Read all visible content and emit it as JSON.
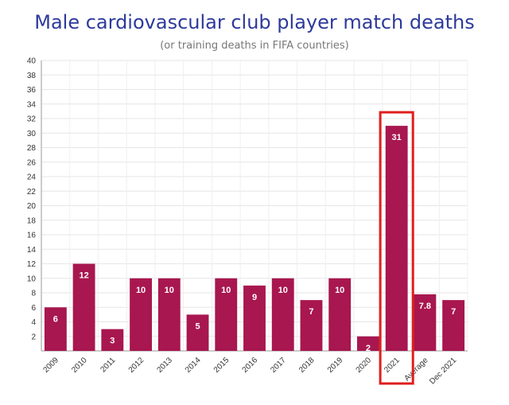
{
  "chart_data": {
    "type": "bar",
    "title": "Male cardiovascular club player match deaths",
    "subtitle": "(or training deaths in FIFA countries)",
    "xlabel": "",
    "ylabel": "",
    "categories": [
      "2009",
      "2010",
      "2011",
      "2012",
      "2013",
      "2014",
      "2015",
      "2016",
      "2017",
      "2018",
      "2019",
      "2020",
      "2021",
      "Average",
      "Dec 2021"
    ],
    "values": [
      6,
      12,
      3,
      10,
      10,
      5,
      10,
      9,
      10,
      7,
      10,
      2,
      31,
      7.8,
      7
    ],
    "data_labels": [
      "6",
      "12",
      "3",
      "10",
      "10",
      "5",
      "10",
      "9",
      "10",
      "7",
      "10",
      "2",
      "31",
      "7.8",
      "7"
    ],
    "ylim": [
      0,
      40
    ],
    "yticks": [
      "2",
      "4",
      "6",
      "8",
      "10",
      "12",
      "14",
      "16",
      "18",
      "20",
      "22",
      "24",
      "26",
      "28",
      "30",
      "32",
      "34",
      "36",
      "38",
      "40"
    ],
    "grid": true,
    "bar_color": "#a8174f",
    "highlight": {
      "category": "2021",
      "color": "#e01e1e"
    }
  }
}
